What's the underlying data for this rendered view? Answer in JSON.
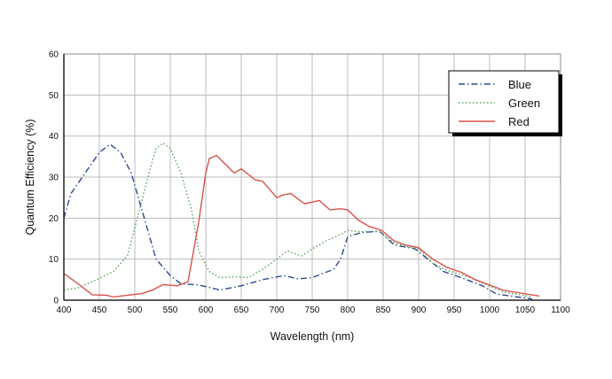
{
  "chart_data": {
    "type": "line",
    "title": "",
    "xlabel": "Wavelength (nm)",
    "ylabel": "Quantum Efficiency (%)",
    "xlim": [
      400,
      1100
    ],
    "ylim": [
      0,
      60
    ],
    "xticks": [
      400,
      450,
      500,
      550,
      600,
      650,
      700,
      750,
      800,
      850,
      900,
      950,
      1000,
      1050,
      1100
    ],
    "yticks": [
      0,
      10,
      20,
      30,
      40,
      50,
      60
    ],
    "grid": true,
    "legend_position": "top-right",
    "series": [
      {
        "name": "Blue",
        "color": "#2e4a8c",
        "style": "dashdot",
        "x": [
          400,
          410,
          430,
          450,
          465,
          480,
          495,
          510,
          530,
          550,
          565,
          590,
          620,
          650,
          680,
          710,
          730,
          750,
          780,
          790,
          800,
          820,
          845,
          865,
          880,
          895,
          920,
          935,
          960,
          990,
          1010,
          1060
        ],
        "y": [
          20,
          26,
          31,
          36,
          38,
          36,
          31,
          22,
          10,
          6,
          4,
          3.7,
          2.5,
          3.5,
          5,
          6,
          5.2,
          5.5,
          7.5,
          10,
          15.5,
          16.5,
          16.8,
          13.5,
          13,
          12.5,
          9,
          7,
          5.5,
          3.5,
          1.5,
          0.3
        ]
      },
      {
        "name": "Green",
        "color": "#5aa05a",
        "style": "dotted",
        "x": [
          400,
          420,
          440,
          470,
          490,
          505,
          520,
          530,
          540,
          550,
          565,
          580,
          590,
          605,
          620,
          640,
          660,
          680,
          700,
          715,
          735,
          750,
          770,
          790,
          800,
          820,
          845,
          865,
          880,
          900,
          920,
          940,
          970,
          1000,
          1020,
          1060
        ],
        "y": [
          2.5,
          3,
          4.5,
          7,
          11,
          21,
          31,
          37,
          38.3,
          37,
          31,
          22,
          12,
          7,
          5.5,
          5.7,
          5.5,
          7.5,
          10,
          12,
          10.8,
          12.5,
          14.5,
          16,
          17,
          16.7,
          16.8,
          14,
          13.2,
          12.5,
          9,
          7.3,
          5.7,
          3.4,
          2,
          0.8
        ]
      },
      {
        "name": "Red",
        "color": "#d9534a",
        "style": "solid",
        "x": [
          400,
          420,
          440,
          460,
          470,
          490,
          510,
          525,
          540,
          560,
          575,
          590,
          600,
          605,
          615,
          640,
          650,
          670,
          680,
          700,
          710,
          720,
          735,
          740,
          760,
          775,
          790,
          800,
          815,
          830,
          848,
          865,
          880,
          900,
          920,
          940,
          960,
          980,
          1000,
          1020,
          1070
        ],
        "y": [
          6.5,
          4,
          1.3,
          1.2,
          0.8,
          1.2,
          1.6,
          2.5,
          3.8,
          3.5,
          4.5,
          19,
          31,
          34.5,
          35.3,
          31,
          32,
          29.3,
          29,
          25,
          25.7,
          26,
          24,
          23.5,
          24.3,
          22,
          22.3,
          22,
          19.5,
          18,
          17,
          14.5,
          13.5,
          12.8,
          10,
          8,
          6.8,
          5,
          3.7,
          2.4,
          1
        ]
      }
    ]
  }
}
